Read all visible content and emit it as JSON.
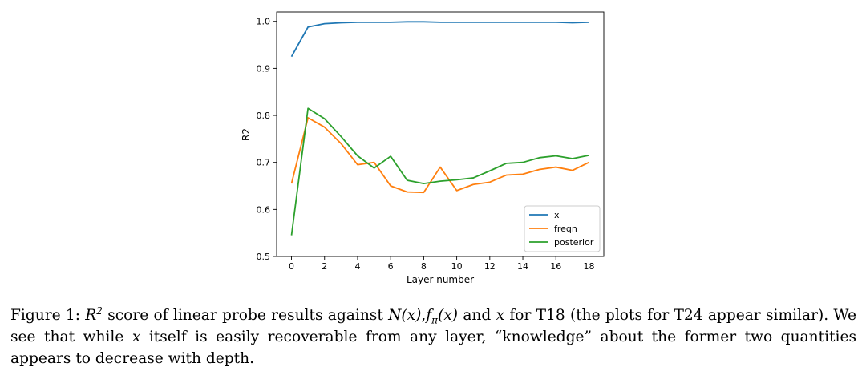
{
  "chart_data": {
    "type": "line",
    "xlabel": "Layer number",
    "ylabel": "R2",
    "x": [
      0,
      1,
      2,
      3,
      4,
      5,
      6,
      7,
      8,
      9,
      10,
      11,
      12,
      13,
      14,
      15,
      16,
      17,
      18
    ],
    "xticks": [
      "0",
      "2",
      "4",
      "6",
      "8",
      "10",
      "12",
      "14",
      "16",
      "18"
    ],
    "yticks": [
      "0.5",
      "0.6",
      "0.7",
      "0.8",
      "0.9",
      "1.0"
    ],
    "xlim": [
      -0.9,
      18.9
    ],
    "ylim": [
      0.5,
      1.02
    ],
    "legend_position": "lower-right",
    "grid": false,
    "series": [
      {
        "name": "x",
        "color": "#1f77b4",
        "values": [
          0.925,
          0.988,
          0.995,
          0.997,
          0.998,
          0.998,
          0.998,
          0.999,
          0.999,
          0.998,
          0.998,
          0.998,
          0.998,
          0.998,
          0.998,
          0.998,
          0.998,
          0.997,
          0.998
        ]
      },
      {
        "name": "freqn",
        "color": "#ff7f0e",
        "values": [
          0.655,
          0.795,
          0.775,
          0.74,
          0.695,
          0.7,
          0.65,
          0.637,
          0.636,
          0.69,
          0.64,
          0.653,
          0.658,
          0.673,
          0.675,
          0.685,
          0.69,
          0.683,
          0.7
        ]
      },
      {
        "name": "posterior",
        "color": "#2ca02c",
        "values": [
          0.545,
          0.815,
          0.793,
          0.755,
          0.714,
          0.688,
          0.713,
          0.662,
          0.655,
          0.66,
          0.663,
          0.667,
          0.682,
          0.698,
          0.7,
          0.71,
          0.714,
          0.708,
          0.715
        ]
      }
    ]
  },
  "caption": {
    "figure_label": "Figure 1:",
    "text_1": "score of linear probe results against",
    "text_2": "and",
    "text_3": "for T18 (the plots for T24 appear similar). We see that while",
    "text_4": "itself is easily recoverable from any layer, “knowledge” about the former two quantities appears to decrease with depth.",
    "math_R": "R",
    "math_R_exp": "2",
    "math_Nx": "N(x)",
    "math_comma": ",",
    "math_f": "f",
    "math_f_sub": "π",
    "math_fx": "(x)",
    "math_x1": "x",
    "math_x2": "x"
  }
}
